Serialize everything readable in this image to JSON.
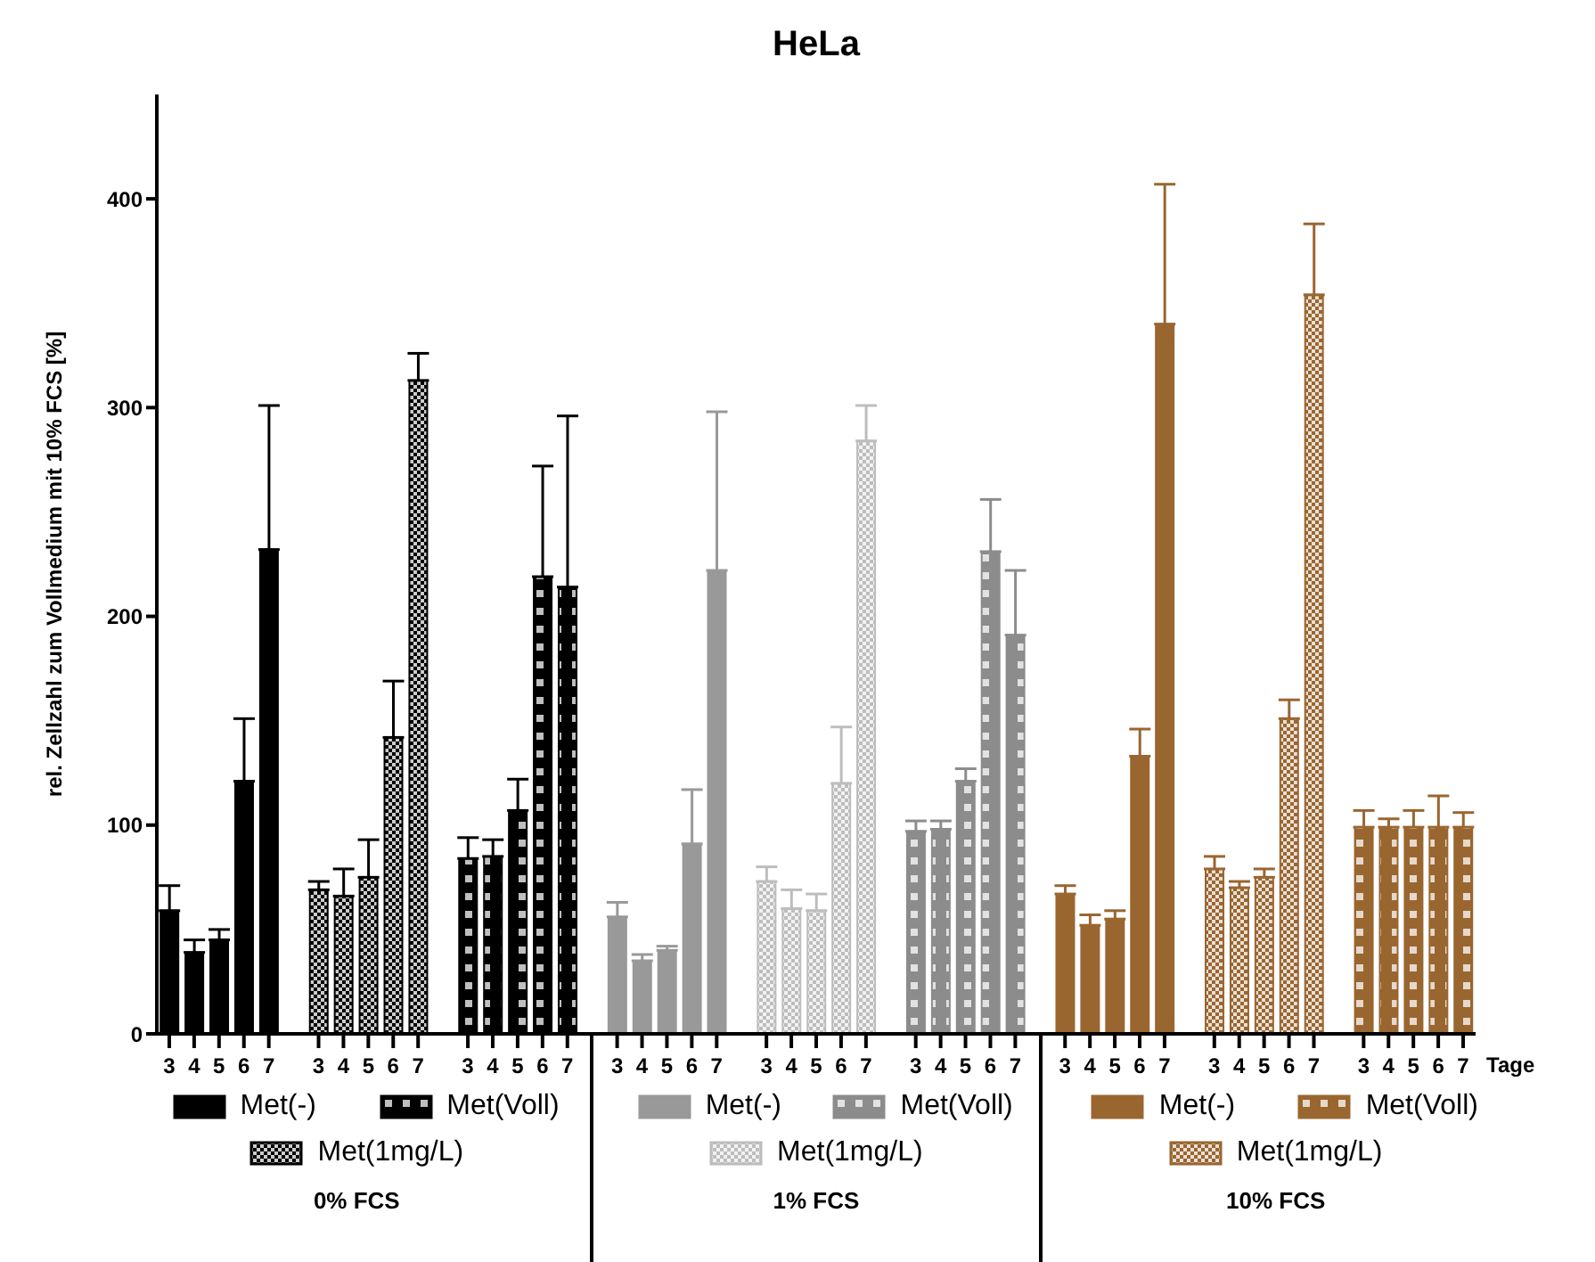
{
  "chart_data": {
    "type": "bar",
    "title": "HeLa",
    "xlabel": "Tage",
    "ylabel": "rel. Zellzahl zum Vollmedium mit 10% FCS [%]",
    "categories": [
      "3",
      "4",
      "5",
      "6",
      "7",
      null,
      "3",
      "4",
      "5",
      "6",
      "7",
      null,
      "3",
      "4",
      "5",
      "6",
      "7",
      null,
      "3",
      "4",
      "5",
      "6",
      "7",
      null,
      "3",
      "4",
      "5",
      "6",
      "7",
      null,
      "3",
      "4",
      "5",
      "6",
      "7",
      null,
      "3",
      "4",
      "5",
      "6",
      "7",
      null,
      "3",
      "4",
      "5",
      "6",
      "7",
      null,
      "3",
      "4",
      "5",
      "6",
      "7"
    ],
    "ylim": [
      0,
      450
    ],
    "yticks": [
      0,
      100,
      200,
      300,
      400
    ],
    "legend": "bottom",
    "annotations": [
      "0% FCS",
      "1% FCS",
      "10% FCS"
    ],
    "series": [
      {
        "name": "Met(-)",
        "color": "#000000",
        "values": [
          59,
          39,
          45,
          121,
          232,
          null,
          null,
          null,
          null,
          null,
          null,
          null,
          null,
          null,
          null,
          null,
          null,
          null,
          null,
          null,
          null,
          null,
          null,
          null,
          null,
          null,
          null,
          null,
          null,
          null,
          null,
          null,
          null,
          null,
          null,
          null,
          null,
          null,
          null,
          null,
          null,
          null,
          null,
          null,
          null,
          null,
          null,
          null,
          null,
          null,
          null,
          null,
          null
        ],
        "errors": [
          [
            59,
            71
          ],
          [
            39,
            45
          ],
          [
            45,
            50
          ],
          [
            121,
            151
          ],
          [
            232,
            301
          ],
          null,
          null,
          null,
          null,
          null,
          null,
          null,
          null,
          null,
          null,
          null,
          null,
          null,
          null,
          null,
          null,
          null,
          null,
          null,
          null,
          null,
          null,
          null,
          null,
          null,
          null,
          null,
          null,
          null,
          null,
          null,
          null,
          null,
          null,
          null,
          null,
          null,
          null,
          null,
          null,
          null,
          null,
          null,
          null,
          null,
          null,
          null,
          null
        ]
      },
      {
        "name": "Met(Voll)",
        "color": "#000000",
        "values": [
          null,
          null,
          null,
          null,
          null,
          null,
          null,
          null,
          null,
          null,
          null,
          null,
          84,
          85,
          107,
          219,
          214,
          null,
          null,
          null,
          null,
          null,
          null,
          null,
          null,
          null,
          null,
          null,
          null,
          null,
          null,
          null,
          null,
          null,
          null,
          null,
          null,
          null,
          null,
          null,
          null,
          null,
          null,
          null,
          null,
          null,
          null,
          null,
          null,
          null,
          null,
          null,
          null
        ],
        "errors": [
          null,
          null,
          null,
          null,
          null,
          null,
          null,
          null,
          null,
          null,
          null,
          null,
          [
            84,
            94
          ],
          [
            85,
            93
          ],
          [
            107,
            122
          ],
          [
            219,
            272
          ],
          [
            214,
            296
          ],
          null,
          null,
          null,
          null,
          null,
          null,
          null,
          null,
          null,
          null,
          null,
          null,
          null,
          null,
          null,
          null,
          null,
          null,
          null,
          null,
          null,
          null,
          null,
          null,
          null,
          null,
          null,
          null,
          null,
          null,
          null,
          null,
          null,
          null,
          null,
          null
        ]
      },
      {
        "name": "Met(1mg/L)",
        "color": "#000000",
        "values": [
          null,
          null,
          null,
          null,
          null,
          null,
          69,
          66,
          75,
          142,
          313,
          null,
          null,
          null,
          null,
          null,
          null,
          null,
          null,
          null,
          null,
          null,
          null,
          null,
          null,
          null,
          null,
          null,
          null,
          null,
          null,
          null,
          null,
          null,
          null,
          null,
          null,
          null,
          null,
          null,
          null,
          null,
          null,
          null,
          null,
          null,
          null,
          null,
          null,
          null,
          null,
          null,
          null
        ],
        "errors": [
          null,
          null,
          null,
          null,
          null,
          null,
          [
            69,
            73
          ],
          [
            66,
            79
          ],
          [
            75,
            93
          ],
          [
            142,
            169
          ],
          [
            313,
            326
          ],
          null,
          null,
          null,
          null,
          null,
          null,
          null,
          null,
          null,
          null,
          null,
          null,
          null,
          null,
          null,
          null,
          null,
          null,
          null,
          null,
          null,
          null,
          null,
          null,
          null,
          null,
          null,
          null,
          null,
          null,
          null,
          null,
          null,
          null,
          null,
          null,
          null,
          null,
          null,
          null,
          null,
          null
        ]
      },
      {
        "name": "Met(-)",
        "color": "#999999",
        "values": [
          null,
          null,
          null,
          null,
          null,
          null,
          null,
          null,
          null,
          null,
          null,
          null,
          null,
          null,
          null,
          null,
          null,
          null,
          56,
          35,
          40,
          91,
          222,
          null,
          null,
          null,
          null,
          null,
          null,
          null,
          null,
          null,
          null,
          null,
          null,
          null,
          null,
          null,
          null,
          null,
          null,
          null,
          null,
          null,
          null,
          null,
          null,
          null,
          null,
          null,
          null,
          null,
          null
        ],
        "errors": [
          null,
          null,
          null,
          null,
          null,
          null,
          null,
          null,
          null,
          null,
          null,
          null,
          null,
          null,
          null,
          null,
          null,
          null,
          [
            56,
            63
          ],
          [
            35,
            38
          ],
          [
            40,
            42
          ],
          [
            91,
            117
          ],
          [
            222,
            298
          ],
          null,
          null,
          null,
          null,
          null,
          null,
          null,
          null,
          null,
          null,
          null,
          null,
          null,
          null,
          null,
          null,
          null,
          null,
          null,
          null,
          null,
          null,
          null,
          null,
          null,
          null,
          null,
          null,
          null,
          null
        ]
      },
      {
        "name": "Met(Voll)",
        "color": "#8c8c8c",
        "values": [
          null,
          null,
          null,
          null,
          null,
          null,
          null,
          null,
          null,
          null,
          null,
          null,
          null,
          null,
          null,
          null,
          null,
          null,
          null,
          null,
          null,
          null,
          null,
          null,
          null,
          null,
          null,
          null,
          null,
          null,
          97,
          98,
          121,
          231,
          191,
          null,
          null,
          null,
          null,
          null,
          null,
          null,
          null,
          null,
          null,
          null,
          null,
          null,
          null,
          null,
          null,
          null,
          null
        ],
        "errors": [
          null,
          null,
          null,
          null,
          null,
          null,
          null,
          null,
          null,
          null,
          null,
          null,
          null,
          null,
          null,
          null,
          null,
          null,
          null,
          null,
          null,
          null,
          null,
          null,
          null,
          null,
          null,
          null,
          null,
          null,
          [
            97,
            102
          ],
          [
            98,
            102
          ],
          [
            121,
            127
          ],
          [
            231,
            256
          ],
          [
            191,
            222
          ],
          null,
          null,
          null,
          null,
          null,
          null,
          null,
          null,
          null,
          null,
          null,
          null,
          null,
          null,
          null,
          null,
          null,
          null
        ]
      },
      {
        "name": "Met(1mg/L)",
        "color": "#bdbdbd",
        "values": [
          null,
          null,
          null,
          null,
          null,
          null,
          null,
          null,
          null,
          null,
          null,
          null,
          null,
          null,
          null,
          null,
          null,
          null,
          null,
          null,
          null,
          null,
          null,
          null,
          73,
          60,
          59,
          120,
          284,
          null,
          null,
          null,
          null,
          null,
          null,
          null,
          null,
          null,
          null,
          null,
          null,
          null,
          null,
          null,
          null,
          null,
          null,
          null,
          null,
          null,
          null,
          null,
          null
        ],
        "errors": [
          null,
          null,
          null,
          null,
          null,
          null,
          null,
          null,
          null,
          null,
          null,
          null,
          null,
          null,
          null,
          null,
          null,
          null,
          null,
          null,
          null,
          null,
          null,
          null,
          [
            73,
            80
          ],
          [
            60,
            69
          ],
          [
            59,
            67
          ],
          [
            120,
            147
          ],
          [
            284,
            301
          ],
          null,
          null,
          null,
          null,
          null,
          null,
          null,
          null,
          null,
          null,
          null,
          null,
          null,
          null,
          null,
          null,
          null,
          null,
          null,
          null,
          null,
          null,
          null,
          null
        ]
      },
      {
        "name": "Met(-)",
        "color": "#9a6630",
        "values": [
          null,
          null,
          null,
          null,
          null,
          null,
          null,
          null,
          null,
          null,
          null,
          null,
          null,
          null,
          null,
          null,
          null,
          null,
          null,
          null,
          null,
          null,
          null,
          null,
          null,
          null,
          null,
          null,
          null,
          null,
          null,
          null,
          null,
          null,
          null,
          null,
          67,
          52,
          55,
          133,
          340,
          null,
          null,
          null,
          null,
          null,
          null,
          null,
          null,
          null,
          null,
          null,
          null
        ],
        "errors": [
          null,
          null,
          null,
          null,
          null,
          null,
          null,
          null,
          null,
          null,
          null,
          null,
          null,
          null,
          null,
          null,
          null,
          null,
          null,
          null,
          null,
          null,
          null,
          null,
          null,
          null,
          null,
          null,
          null,
          null,
          null,
          null,
          null,
          null,
          null,
          null,
          [
            67,
            71
          ],
          [
            52,
            57
          ],
          [
            55,
            59
          ],
          [
            133,
            146
          ],
          [
            340,
            407
          ],
          null,
          null,
          null,
          null,
          null,
          null,
          null,
          null,
          null,
          null,
          null,
          null
        ]
      },
      {
        "name": "Met(Voll)",
        "color": "#9a6630",
        "values": [
          null,
          null,
          null,
          null,
          null,
          null,
          null,
          null,
          null,
          null,
          null,
          null,
          null,
          null,
          null,
          null,
          null,
          null,
          null,
          null,
          null,
          null,
          null,
          null,
          null,
          null,
          null,
          null,
          null,
          null,
          null,
          null,
          null,
          null,
          null,
          null,
          null,
          null,
          null,
          null,
          null,
          null,
          null,
          null,
          null,
          null,
          null,
          null,
          99,
          99,
          99,
          99,
          99
        ],
        "errors": [
          null,
          null,
          null,
          null,
          null,
          null,
          null,
          null,
          null,
          null,
          null,
          null,
          null,
          null,
          null,
          null,
          null,
          null,
          null,
          null,
          null,
          null,
          null,
          null,
          null,
          null,
          null,
          null,
          null,
          null,
          null,
          null,
          null,
          null,
          null,
          null,
          null,
          null,
          null,
          null,
          null,
          null,
          null,
          null,
          null,
          null,
          null,
          null,
          [
            99,
            107
          ],
          [
            99,
            103
          ],
          [
            99,
            107
          ],
          [
            99,
            114
          ],
          [
            99,
            106
          ]
        ]
      },
      {
        "name": "Met(1mg/L)",
        "color": "#9a6630",
        "values": [
          null,
          null,
          null,
          null,
          null,
          null,
          null,
          null,
          null,
          null,
          null,
          null,
          null,
          null,
          null,
          null,
          null,
          null,
          null,
          null,
          null,
          null,
          null,
          null,
          null,
          null,
          null,
          null,
          null,
          null,
          null,
          null,
          null,
          null,
          null,
          null,
          null,
          null,
          null,
          null,
          null,
          null,
          79,
          70,
          75,
          151,
          354,
          null,
          null,
          null,
          null,
          null,
          null
        ],
        "errors": [
          null,
          null,
          null,
          null,
          null,
          null,
          null,
          null,
          null,
          null,
          null,
          null,
          null,
          null,
          null,
          null,
          null,
          null,
          null,
          null,
          null,
          null,
          null,
          null,
          null,
          null,
          null,
          null,
          null,
          null,
          null,
          null,
          null,
          null,
          null,
          null,
          null,
          null,
          null,
          null,
          null,
          null,
          [
            79,
            85
          ],
          [
            70,
            73
          ],
          [
            75,
            79
          ],
          [
            151,
            160
          ],
          [
            354,
            388
          ],
          null,
          null,
          null,
          null,
          null,
          null
        ]
      }
    ]
  }
}
